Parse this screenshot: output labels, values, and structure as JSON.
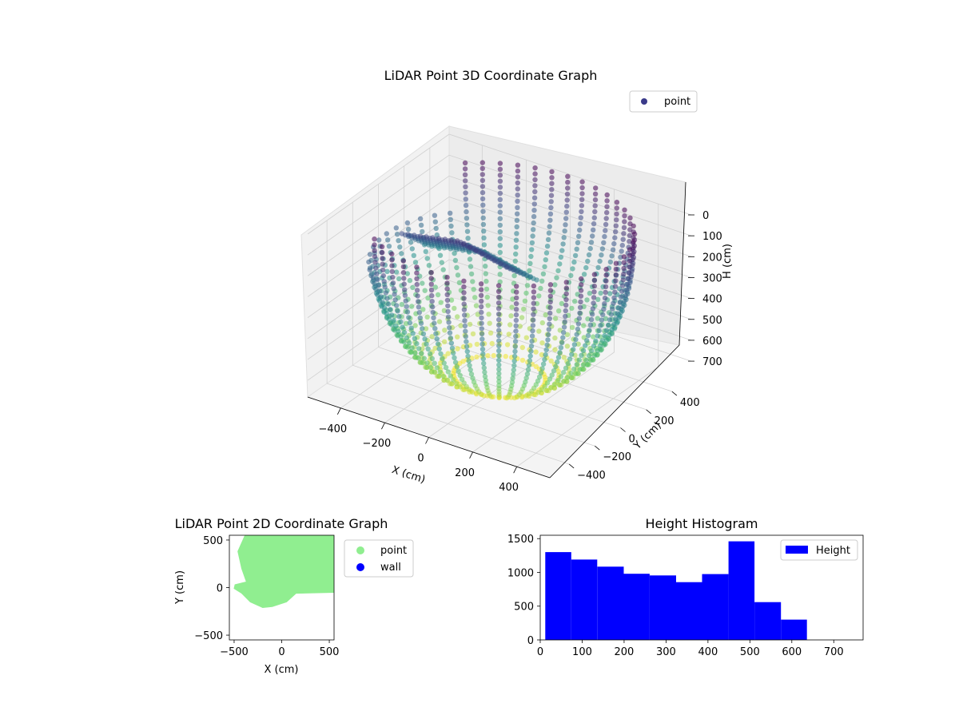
{
  "figure": {
    "colors": {
      "point_cmap_dark": "#440154",
      "point_cmap_mid": "#21918c",
      "point_cmap_light": "#fde725",
      "legend_marker_3d": "#3b3b8a",
      "scatter2d_point": "#90ee90",
      "scatter2d_wall": "#0000ff",
      "hist_bar": "#0000ff",
      "pane": "#f2f2f2",
      "grid": "#d0d0d0"
    }
  },
  "chart_data": [
    {
      "type": "scatter",
      "projection": "3d",
      "title": "LiDAR Point 3D Coordinate Graph",
      "xlabel": "X (cm)",
      "ylabel": "Y (cm)",
      "zlabel": "H (cm)",
      "xlim": [
        -550,
        550
      ],
      "ylim": [
        -550,
        550
      ],
      "zlim": [
        0,
        780
      ],
      "z_inverted": true,
      "xticks": [
        -400,
        -200,
        0,
        200,
        400
      ],
      "xtick_labels": [
        "−400",
        "−200",
        "0",
        "200",
        "400"
      ],
      "yticks": [
        -400,
        -200,
        0,
        200,
        400
      ],
      "ytick_labels": [
        "−400",
        "−200",
        "0",
        "200",
        "400"
      ],
      "zticks": [
        0,
        100,
        200,
        300,
        400,
        500,
        600,
        700
      ],
      "ztick_labels": [
        "0",
        "100",
        "200",
        "300",
        "400",
        "500",
        "600",
        "700"
      ],
      "colormap": "viridis",
      "color_by": "H",
      "legend": [
        "point"
      ],
      "legend_loc": "upper right",
      "description_shape": "bowl-shaped point cloud, radius ~500 at top (H≈0) narrowing toward H≈750, with an inner folded sheet at the front-left"
    },
    {
      "type": "scatter",
      "title": "LiDAR Point 2D Coordinate Graph",
      "xlabel": "X (cm)",
      "ylabel": "Y (cm)",
      "xlim": [
        -550,
        550
      ],
      "ylim": [
        -550,
        550
      ],
      "xticks": [
        -500,
        0,
        500
      ],
      "xtick_labels": [
        "−500",
        "0",
        "500"
      ],
      "yticks": [
        -500,
        0,
        500
      ],
      "ytick_labels": [
        "−500",
        "0",
        "500"
      ],
      "series": [
        {
          "name": "point",
          "color": "#90ee90",
          "region_outline": [
            [
              -380,
              560
            ],
            [
              -460,
              380
            ],
            [
              -420,
              200
            ],
            [
              -370,
              60
            ],
            [
              -490,
              30
            ],
            [
              -500,
              -10
            ],
            [
              -420,
              -60
            ],
            [
              -330,
              -150
            ],
            [
              -200,
              -210
            ],
            [
              -100,
              -200
            ],
            [
              50,
              -150
            ],
            [
              150,
              -60
            ],
            [
              550,
              -50
            ],
            [
              550,
              560
            ]
          ]
        },
        {
          "name": "wall",
          "color": "#0000ff",
          "points": []
        }
      ],
      "legend": [
        "point",
        "wall"
      ],
      "legend_loc": "outside upper right"
    },
    {
      "type": "bar",
      "subtype": "histogram",
      "title": "Height Histogram",
      "xlim": [
        0,
        770
      ],
      "ylim": [
        0,
        1550
      ],
      "xticks": [
        0,
        100,
        200,
        300,
        400,
        500,
        600,
        700
      ],
      "xtick_labels": [
        "0",
        "100",
        "200",
        "300",
        "400",
        "500",
        "600",
        "700"
      ],
      "yticks": [
        0,
        500,
        1000,
        1500
      ],
      "ytick_labels": [
        "0",
        "500",
        "1000",
        "1500"
      ],
      "bin_edges": [
        12,
        74,
        136,
        199,
        261,
        324,
        386,
        449,
        511,
        574,
        636
      ],
      "values": [
        1300,
        1190,
        1085,
        980,
        955,
        855,
        975,
        1460,
        560,
        300
      ],
      "series_name": "Height",
      "color": "#0000ff",
      "legend": [
        "Height"
      ],
      "legend_loc": "upper right"
    }
  ]
}
